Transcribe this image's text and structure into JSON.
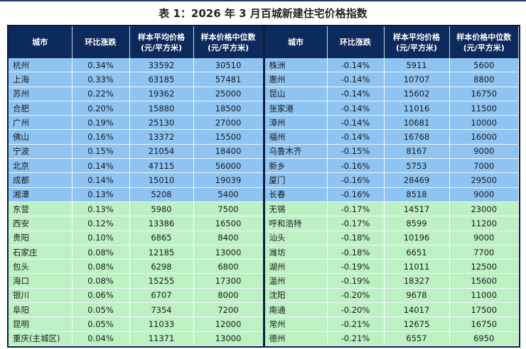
{
  "title": "表 1：2026 年 3 月百城新建住宅价格指数",
  "headers": [
    "城市",
    "环比涨跌",
    "样本平均价格\n(元/平方米)",
    "样本价格中位数\n(元/平方米)"
  ],
  "colors": {
    "header": "#0d2a5c",
    "blue_row": "#8ec3f2",
    "green_row": "#bdf1c3"
  },
  "left": [
    [
      "杭州",
      "0.34%",
      "33592",
      "30510"
    ],
    [
      "上海",
      "0.33%",
      "63185",
      "57481"
    ],
    [
      "苏州",
      "0.22%",
      "19362",
      "25000"
    ],
    [
      "合肥",
      "0.20%",
      "15880",
      "18500"
    ],
    [
      "广州",
      "0.19%",
      "25130",
      "27000"
    ],
    [
      "佛山",
      "0.16%",
      "13372",
      "15500"
    ],
    [
      "宁波",
      "0.15%",
      "21054",
      "18400"
    ],
    [
      "北京",
      "0.14%",
      "47115",
      "56000"
    ],
    [
      "成都",
      "0.14%",
      "15010",
      "19039"
    ],
    [
      "湘潭",
      "0.13%",
      "5208",
      "5400"
    ],
    [
      "东营",
      "0.13%",
      "5980",
      "7500"
    ],
    [
      "西安",
      "0.12%",
      "13386",
      "16500"
    ],
    [
      "贵阳",
      "0.10%",
      "6865",
      "8400"
    ],
    [
      "石家庄",
      "0.08%",
      "12185",
      "13000"
    ],
    [
      "包头",
      "0.08%",
      "6298",
      "6800"
    ],
    [
      "海口",
      "0.08%",
      "15255",
      "17300"
    ],
    [
      "银川",
      "0.06%",
      "6707",
      "8000"
    ],
    [
      "阜阳",
      "0.05%",
      "7354",
      "7200"
    ],
    [
      "昆明",
      "0.05%",
      "11033",
      "12000"
    ],
    [
      "重庆(主城区)",
      "0.04%",
      "11371",
      "13000"
    ]
  ],
  "right": [
    [
      "株洲",
      "-0.14%",
      "5911",
      "5600"
    ],
    [
      "惠州",
      "-0.14%",
      "10707",
      "8800"
    ],
    [
      "昆山",
      "-0.14%",
      "15602",
      "16750"
    ],
    [
      "张家港",
      "-0.14%",
      "11016",
      "11500"
    ],
    [
      "漳州",
      "-0.14%",
      "10681",
      "10000"
    ],
    [
      "福州",
      "-0.14%",
      "16768",
      "16000"
    ],
    [
      "乌鲁木齐",
      "-0.15%",
      "8167",
      "9000"
    ],
    [
      "新乡",
      "-0.16%",
      "5753",
      "7000"
    ],
    [
      "厦门",
      "-0.16%",
      "28469",
      "29500"
    ],
    [
      "长春",
      "-0.16%",
      "8518",
      "9000"
    ],
    [
      "无锡",
      "-0.17%",
      "14517",
      "23000"
    ],
    [
      "呼和浩特",
      "-0.17%",
      "8599",
      "11200"
    ],
    [
      "汕头",
      "-0.18%",
      "10196",
      "9000"
    ],
    [
      "潍坊",
      "-0.18%",
      "6651",
      "7700"
    ],
    [
      "湖州",
      "-0.19%",
      "11011",
      "12500"
    ],
    [
      "温州",
      "-0.19%",
      "18327",
      "15600"
    ],
    [
      "沈阳",
      "-0.20%",
      "9678",
      "11000"
    ],
    [
      "南通",
      "-0.20%",
      "14017",
      "17500"
    ],
    [
      "常州",
      "-0.21%",
      "12675",
      "16750"
    ],
    [
      "德州",
      "-0.21%",
      "6557",
      "6950"
    ]
  ],
  "blue_row_count": 10
}
